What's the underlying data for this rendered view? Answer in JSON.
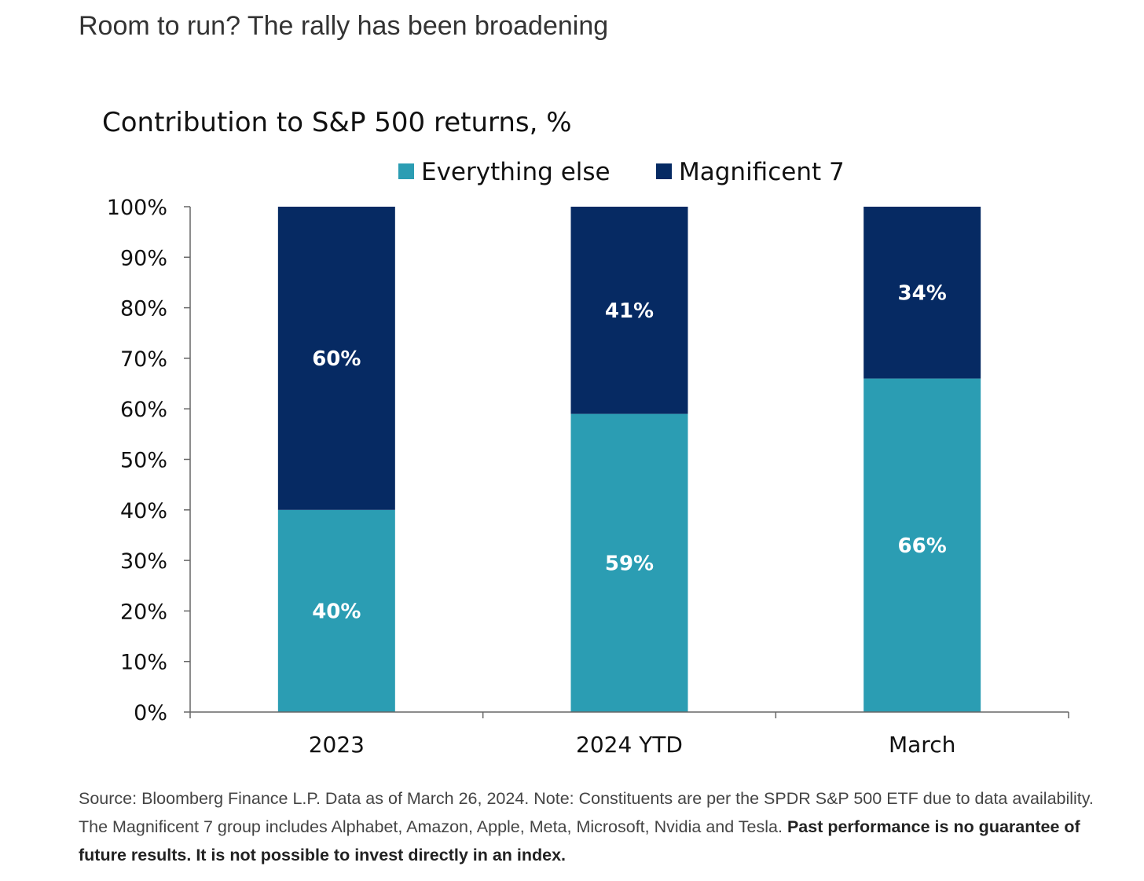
{
  "header": {
    "title": "Room to run? The rally has been broadening"
  },
  "colors": {
    "everything_else": "#2b9db3",
    "magnificent_7": "#062a63",
    "axis": "#666666"
  },
  "chart_data": {
    "type": "bar",
    "stacked": true,
    "title": "Contribution to S&P 500 returns, %",
    "xlabel": "",
    "ylabel": "",
    "categories": [
      "2023",
      "2024 YTD",
      "March"
    ],
    "series": [
      {
        "name": "Everything else",
        "values": [
          40,
          59,
          66
        ],
        "labels": [
          "40%",
          "59%",
          "66%"
        ],
        "color": "#2b9db3"
      },
      {
        "name": "Magnificent 7",
        "values": [
          60,
          41,
          34
        ],
        "labels": [
          "60%",
          "41%",
          "34%"
        ],
        "color": "#062a63"
      }
    ],
    "ylim": [
      0,
      100
    ],
    "yticks": [
      0,
      10,
      20,
      30,
      40,
      50,
      60,
      70,
      80,
      90,
      100
    ],
    "ytick_labels": [
      "0%",
      "10%",
      "20%",
      "30%",
      "40%",
      "50%",
      "60%",
      "70%",
      "80%",
      "90%",
      "100%"
    ],
    "grid": false,
    "legend_position": "top-center"
  },
  "footnote": {
    "text": "Source: Bloomberg Finance L.P. Data as of March 26, 2024. Note: Constituents are per the SPDR S&P 500 ETF due to data availability. The Magnificent 7 group includes Alphabet, Amazon, Apple, Meta, Microsoft, Nvidia and Tesla.",
    "bold_text": "Past performance is no guarantee of future results. It is not possible to invest directly in an index."
  }
}
